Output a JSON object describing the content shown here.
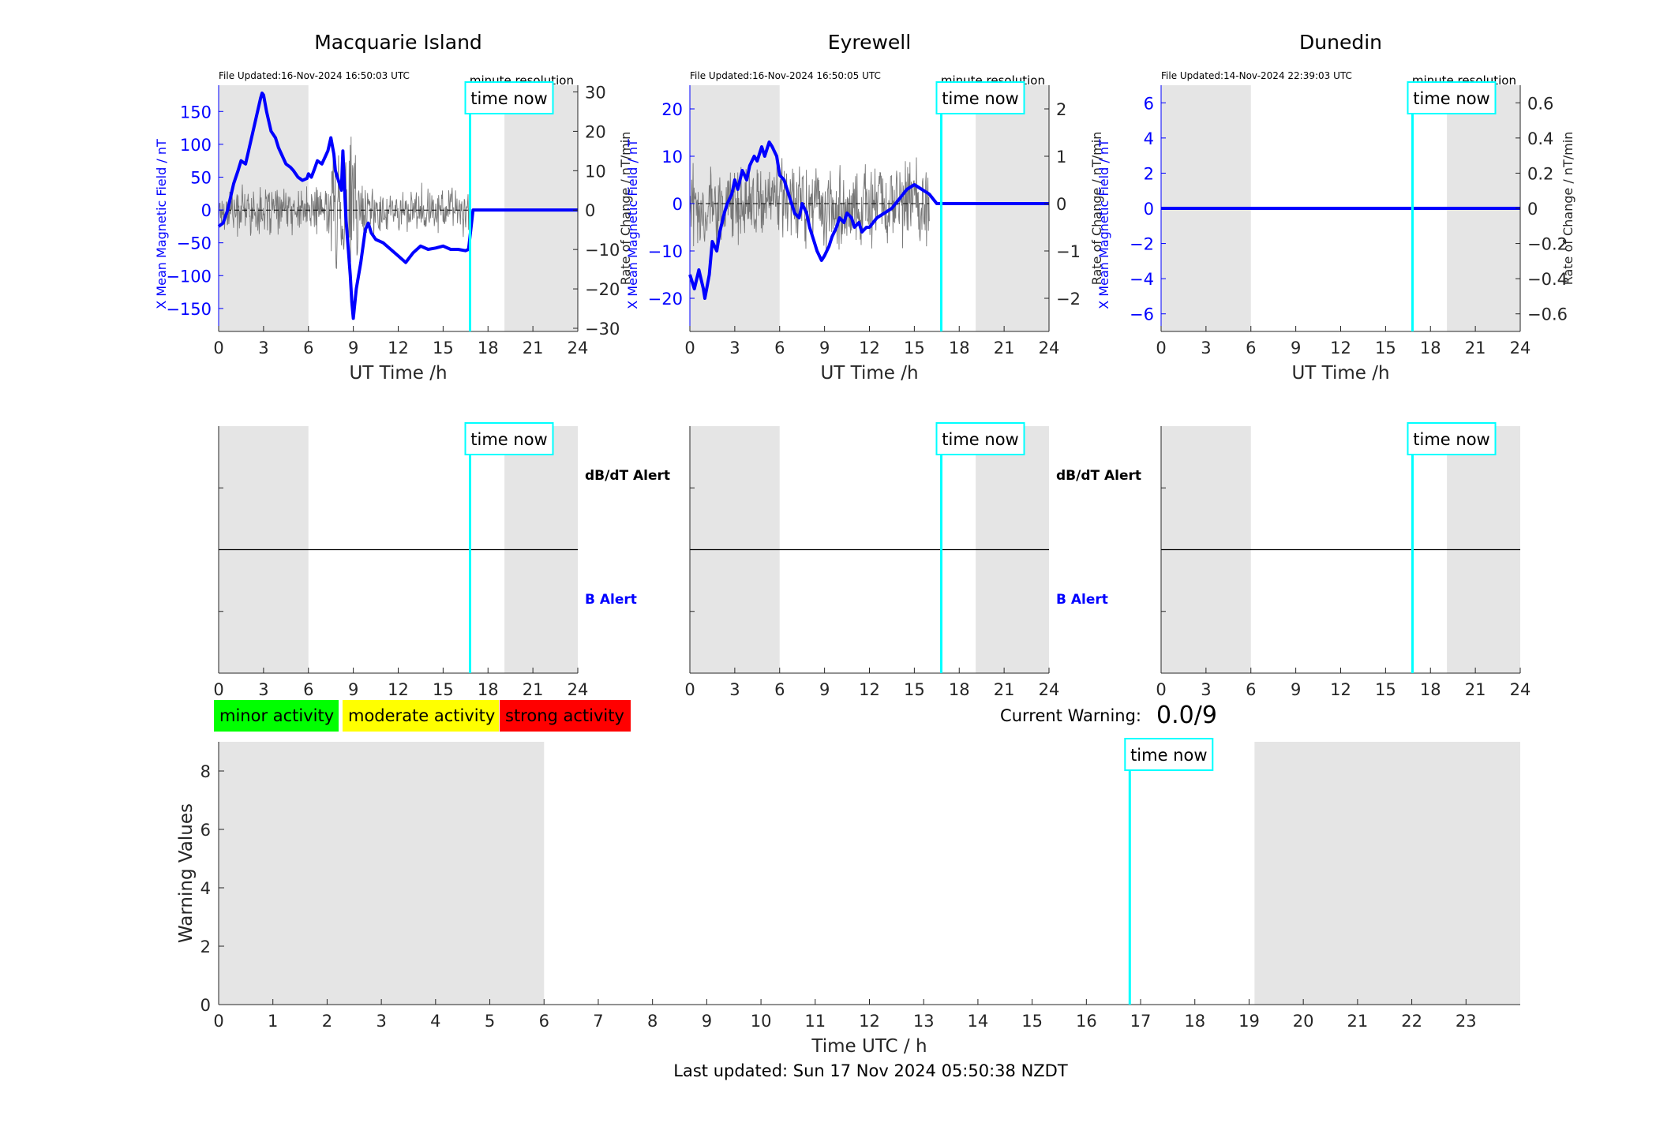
{
  "colors": {
    "b_field": "#0000ff",
    "rate": "#000000",
    "time_now": "#00ffff",
    "shade": "#e5e5e5",
    "minor": "#00ff00",
    "moderate": "#ffff00",
    "strong": "#ff0000"
  },
  "common": {
    "time_now_label": "time now",
    "resolution_label": "minute resolution",
    "xlabel": "UT Time /h",
    "y_left_label": "X Mean Magnetic Field / nT",
    "y_right_label": "Rate of Change / nT/min",
    "dbdt_alert_label": "dB/dT Alert",
    "b_alert_label": "B Alert"
  },
  "legend": {
    "minor": "minor activity",
    "moderate": "moderate activity",
    "strong": "strong activity"
  },
  "current_warning": {
    "label": "Current Warning:",
    "value": "0.0/9"
  },
  "footer": {
    "last_updated": "Last updated: Sun 17 Nov 2024 05:50:38 NZDT"
  },
  "chart_data": [
    {
      "type": "line",
      "title": "Macquarie Island",
      "file_updated": "File Updated:16-Nov-2024 16:50:03 UTC",
      "xlabel": "UT Time /h",
      "ylabel": "X Mean Magnetic Field / nT",
      "y2label": "Rate of Change / nT/min",
      "xlim": [
        0,
        24
      ],
      "ylim": [
        -185,
        190
      ],
      "y2lim": [
        -30.8,
        31.7
      ],
      "xticks": [
        0,
        3,
        6,
        9,
        12,
        15,
        18,
        21,
        24
      ],
      "yticks": [
        -150,
        -100,
        -50,
        0,
        50,
        100,
        150
      ],
      "y2ticks": [
        -30,
        -20,
        -10,
        0,
        10,
        20,
        30
      ],
      "shaded_x": [
        [
          0,
          6
        ],
        [
          19.1,
          24
        ]
      ],
      "time_now": 16.8,
      "series": [
        {
          "role": "b_field",
          "x": [
            0,
            0.3,
            0.6,
            1.0,
            1.3,
            1.5,
            1.8,
            2.0,
            2.2,
            2.5,
            2.8,
            2.9,
            3.0,
            3.2,
            3.5,
            3.8,
            4.0,
            4.3,
            4.5,
            4.8,
            5.0,
            5.3,
            5.6,
            5.9,
            6.0,
            6.2,
            6.4,
            6.6,
            6.9,
            7.1,
            7.3,
            7.5,
            7.7,
            7.8,
            8.0,
            8.2,
            8.3,
            8.4,
            8.5,
            8.6,
            8.7,
            8.8,
            8.9,
            9.0,
            9.2,
            9.5,
            9.8,
            10.0,
            10.2,
            10.5,
            11.0,
            11.5,
            12.0,
            12.5,
            13.0,
            13.5,
            14.0,
            14.5,
            15.0,
            15.5,
            16.0,
            16.5,
            16.7,
            16.8,
            17.0,
            24.0
          ],
          "y": [
            -25,
            -20,
            0,
            40,
            60,
            75,
            70,
            90,
            110,
            140,
            170,
            178,
            175,
            150,
            120,
            110,
            95,
            80,
            70,
            65,
            60,
            50,
            45,
            48,
            55,
            50,
            62,
            75,
            70,
            80,
            90,
            110,
            85,
            60,
            45,
            30,
            90,
            40,
            -10,
            -40,
            -70,
            -100,
            -140,
            -165,
            -120,
            -80,
            -30,
            -20,
            -35,
            -45,
            -50,
            -60,
            -70,
            -80,
            -65,
            -55,
            -60,
            -58,
            -55,
            -60,
            -60,
            -62,
            -60,
            -40,
            0,
            0
          ]
        },
        {
          "role": "rate",
          "x_range": [
            0,
            16.8
          ],
          "amplitude": 6,
          "spike": {
            "x": [
              7.5,
              9.5
            ],
            "amplitude": 18
          }
        }
      ]
    },
    {
      "type": "line",
      "title": "Eyrewell",
      "file_updated": "File Updated:16-Nov-2024 16:50:05 UTC",
      "xlabel": "UT Time /h",
      "ylabel": "X Mean Magnetic Field / nT",
      "y2label": "Rate of Change / nT/min",
      "xlim": [
        0,
        24
      ],
      "ylim": [
        -27,
        25
      ],
      "y2lim": [
        -2.7,
        2.5
      ],
      "xticks": [
        0,
        3,
        6,
        9,
        12,
        15,
        18,
        21,
        24
      ],
      "yticks": [
        -20,
        -10,
        0,
        10,
        20
      ],
      "y2ticks": [
        -2,
        -1,
        0,
        1,
        2
      ],
      "shaded_x": [
        [
          0,
          6
        ],
        [
          19.1,
          24
        ]
      ],
      "time_now": 16.8,
      "series": [
        {
          "role": "b_field",
          "x": [
            0,
            0.3,
            0.6,
            0.9,
            1.0,
            1.3,
            1.5,
            1.8,
            2.0,
            2.3,
            2.5,
            2.8,
            3.0,
            3.2,
            3.5,
            3.8,
            4.0,
            4.3,
            4.5,
            4.8,
            5.0,
            5.3,
            5.5,
            5.8,
            6.0,
            6.3,
            6.5,
            6.8,
            7.0,
            7.3,
            7.5,
            7.8,
            8.0,
            8.3,
            8.5,
            8.8,
            9.0,
            9.3,
            9.5,
            9.8,
            10.0,
            10.3,
            10.5,
            10.8,
            11.0,
            11.3,
            11.5,
            11.8,
            12.0,
            12.5,
            13.0,
            13.5,
            14.0,
            14.5,
            15.0,
            15.5,
            16.0,
            16.5,
            17.0,
            24.0
          ],
          "y": [
            -15,
            -18,
            -14,
            -18,
            -20,
            -15,
            -8,
            -10,
            -6,
            -2,
            0,
            2,
            5,
            3,
            7,
            5,
            8,
            10,
            9,
            12,
            10,
            13,
            12,
            10,
            6,
            5,
            3,
            0,
            -2,
            -3,
            0,
            -2,
            -5,
            -8,
            -10,
            -12,
            -11,
            -9,
            -7,
            -5,
            -3,
            -4,
            -2,
            -3,
            -5,
            -4,
            -6,
            -5,
            -5,
            -3,
            -2,
            -1,
            1,
            3,
            4,
            3,
            2,
            0,
            0,
            0
          ]
        },
        {
          "role": "rate",
          "x_range": [
            0,
            16
          ],
          "amplitude": 0.9
        }
      ]
    },
    {
      "type": "line",
      "title": "Dunedin",
      "file_updated": "File Updated:14-Nov-2024 22:39:03 UTC",
      "xlabel": "UT Time /h",
      "ylabel": "X Mean Magnetic Field / nT",
      "y2label": "Rate of Change / nT/min",
      "xlim": [
        0,
        24
      ],
      "ylim": [
        -7,
        7
      ],
      "y2lim": [
        -0.7,
        0.7
      ],
      "xticks": [
        0,
        3,
        6,
        9,
        12,
        15,
        18,
        21,
        24
      ],
      "yticks": [
        -6,
        -4,
        -2,
        0,
        2,
        4,
        6
      ],
      "y2ticks": [
        -0.6,
        -0.4,
        -0.2,
        0,
        0.2,
        0.4,
        0.6
      ],
      "shaded_x": [
        [
          0,
          6
        ],
        [
          19.1,
          24
        ]
      ],
      "time_now": 16.8,
      "series": [
        {
          "role": "b_field",
          "x": [
            0,
            24
          ],
          "y": [
            0,
            0
          ]
        }
      ]
    },
    {
      "type": "alert",
      "xlim": [
        0,
        24
      ],
      "xticks": [
        0,
        3,
        6,
        9,
        12,
        15,
        18,
        21,
        24
      ],
      "shaded_x": [
        [
          0,
          6
        ],
        [
          19.1,
          24
        ]
      ],
      "time_now": 16.8,
      "show_labels": true
    },
    {
      "type": "alert",
      "xlim": [
        0,
        24
      ],
      "xticks": [
        0,
        3,
        6,
        9,
        12,
        15,
        18,
        21,
        24
      ],
      "shaded_x": [
        [
          0,
          6
        ],
        [
          19.1,
          24
        ]
      ],
      "time_now": 16.8,
      "show_labels": true
    },
    {
      "type": "alert",
      "xlim": [
        0,
        24
      ],
      "xticks": [
        0,
        3,
        6,
        9,
        12,
        15,
        18,
        21,
        24
      ],
      "shaded_x": [
        [
          0,
          6
        ],
        [
          19.1,
          24
        ]
      ],
      "time_now": 16.8,
      "show_labels": false
    },
    {
      "type": "bar",
      "xlabel": "Time UTC / h",
      "ylabel": "Warning Values",
      "xlim": [
        0,
        24
      ],
      "ylim": [
        0,
        9
      ],
      "xticks": [
        0,
        1,
        2,
        3,
        4,
        5,
        6,
        7,
        8,
        9,
        10,
        11,
        12,
        13,
        14,
        15,
        16,
        17,
        18,
        19,
        20,
        21,
        22,
        23
      ],
      "yticks": [
        0,
        2,
        4,
        6,
        8
      ],
      "shaded_x": [
        [
          0,
          6
        ],
        [
          19.1,
          24
        ]
      ],
      "time_now": 16.8,
      "values": []
    }
  ]
}
